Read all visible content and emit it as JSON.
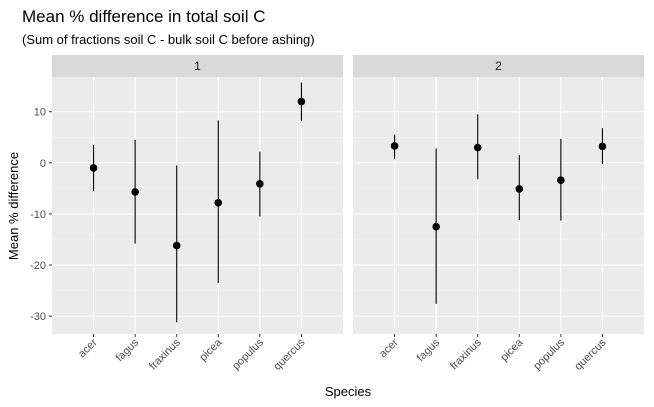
{
  "chart_data": {
    "type": "pointrange",
    "title": "Mean % difference in total soil C",
    "subtitle": "(Sum of fractions soil C - bulk soil C before ashing)",
    "xlabel": "Species",
    "ylabel": "Mean % difference",
    "categories": [
      "acer",
      "fagus",
      "fraxinus",
      "picea",
      "populus",
      "quercus"
    ],
    "ylim": [
      -33.5,
      16.8
    ],
    "yticks": [
      -30,
      -20,
      -10,
      0,
      10
    ],
    "grid": true,
    "panels": [
      {
        "label": "1",
        "points": [
          {
            "x": "acer",
            "y": -1.0,
            "lower": -5.5,
            "upper": 3.5
          },
          {
            "x": "fagus",
            "y": -5.7,
            "lower": -15.8,
            "upper": 4.5
          },
          {
            "x": "fraxinus",
            "y": -16.2,
            "lower": -31.2,
            "upper": -0.5
          },
          {
            "x": "picea",
            "y": -7.8,
            "lower": -23.5,
            "upper": 8.3
          },
          {
            "x": "populus",
            "y": -4.1,
            "lower": -10.5,
            "upper": 2.2
          },
          {
            "x": "quercus",
            "y": 12.0,
            "lower": 8.2,
            "upper": 15.7
          }
        ]
      },
      {
        "label": "2",
        "points": [
          {
            "x": "acer",
            "y": 3.3,
            "lower": 0.8,
            "upper": 5.5
          },
          {
            "x": "fagus",
            "y": -12.5,
            "lower": -27.6,
            "upper": 2.8
          },
          {
            "x": "fraxinus",
            "y": 3.0,
            "lower": -3.2,
            "upper": 9.5
          },
          {
            "x": "picea",
            "y": -5.1,
            "lower": -11.2,
            "upper": 1.5
          },
          {
            "x": "populus",
            "y": -3.4,
            "lower": -11.3,
            "upper": 4.7
          },
          {
            "x": "quercus",
            "y": 3.2,
            "lower": -0.2,
            "upper": 6.8
          }
        ]
      }
    ],
    "colors": {
      "panel_bg": "#ebebeb",
      "strip_bg": "#d9d9d9",
      "grid_major": "#ffffff",
      "grid_minor": "#f2f2f2",
      "point": "#000000"
    }
  }
}
